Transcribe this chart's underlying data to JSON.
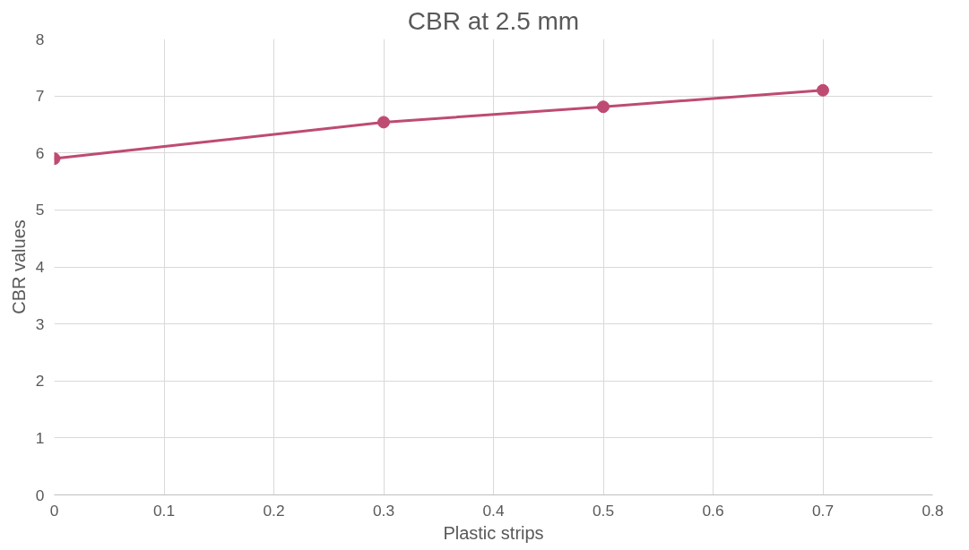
{
  "chart_data": {
    "type": "line",
    "title": "CBR at 2.5 mm",
    "xlabel": "Plastic strips",
    "ylabel": "CBR values",
    "x": [
      0,
      0.3,
      0.5,
      0.7
    ],
    "series": [
      {
        "color": "#be4b73",
        "values": [
          5.9,
          6.54,
          6.81,
          7.1
        ]
      }
    ],
    "xlim": [
      0,
      0.8
    ],
    "xticks": [
      0,
      0.1,
      0.2,
      0.3,
      0.4,
      0.5,
      0.6,
      0.7,
      0.8
    ],
    "ylim": [
      0,
      8
    ],
    "yticks": [
      0,
      1,
      2,
      3,
      4,
      5,
      6,
      7,
      8
    ],
    "grid": true,
    "marker": "circle",
    "line_style": "solid"
  }
}
